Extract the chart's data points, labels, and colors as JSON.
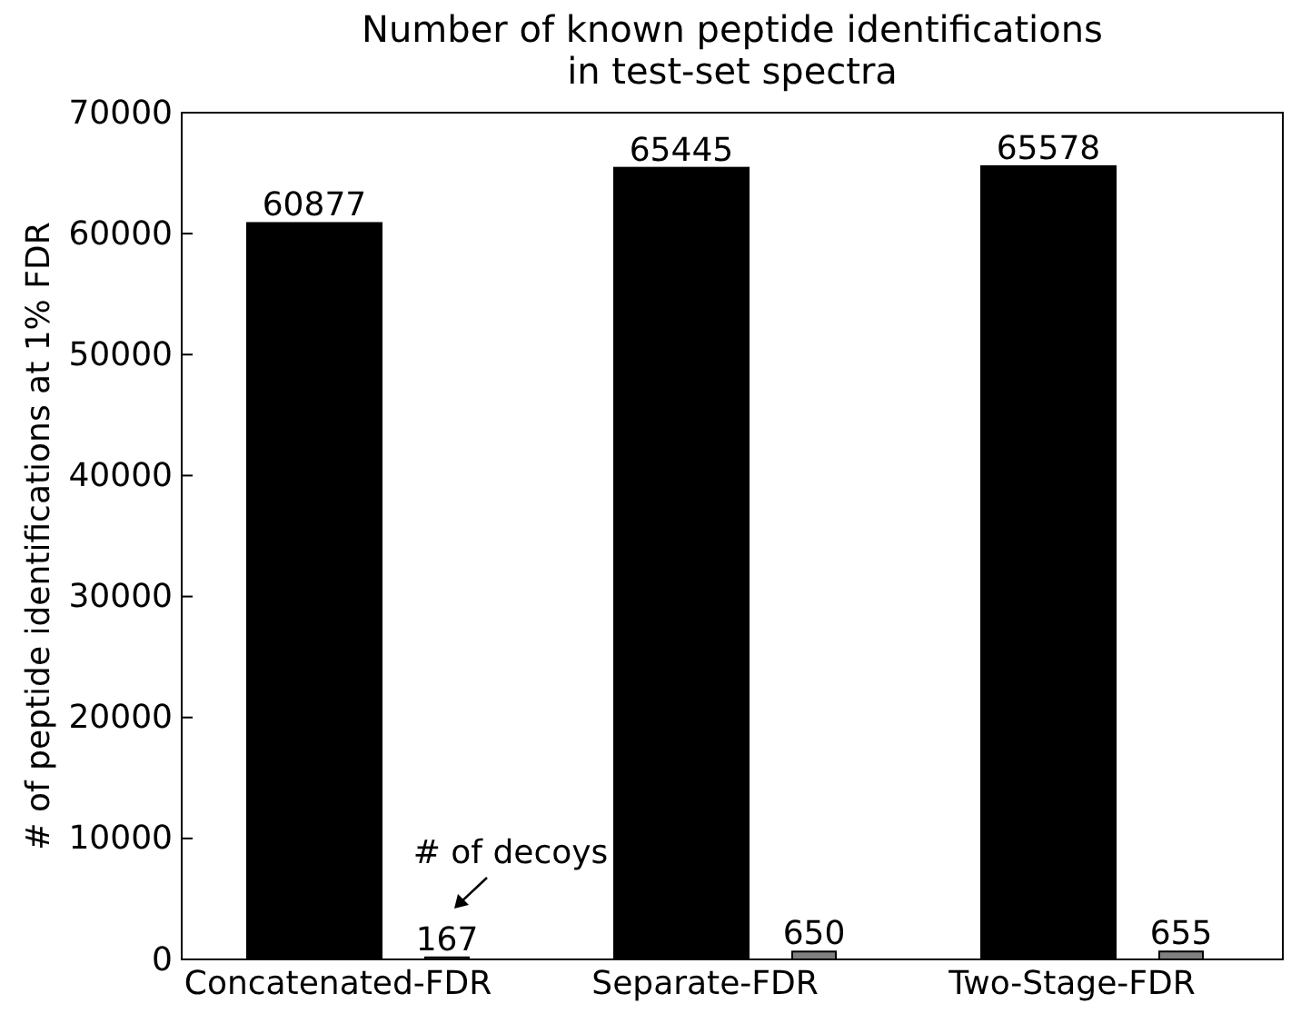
{
  "chart_data": {
    "type": "bar",
    "title": "Number of known peptide identifications\nin test-set spectra",
    "ylabel": "# of peptide identifications at 1% FDR",
    "categories": [
      "Concatenated-FDR",
      "Separate-FDR",
      "Two-Stage-FDR"
    ],
    "series": [
      {
        "color": "#000000",
        "values": [
          60877,
          65445,
          65578
        ]
      },
      {
        "color": "#808080",
        "values": [
          167,
          650,
          655
        ]
      }
    ],
    "ylim": [
      0,
      70000
    ],
    "yticks": [
      0,
      10000,
      20000,
      30000,
      40000,
      50000,
      60000,
      70000
    ],
    "data_labels": true,
    "grid": false,
    "annotations": [
      "# of decoys"
    ]
  }
}
